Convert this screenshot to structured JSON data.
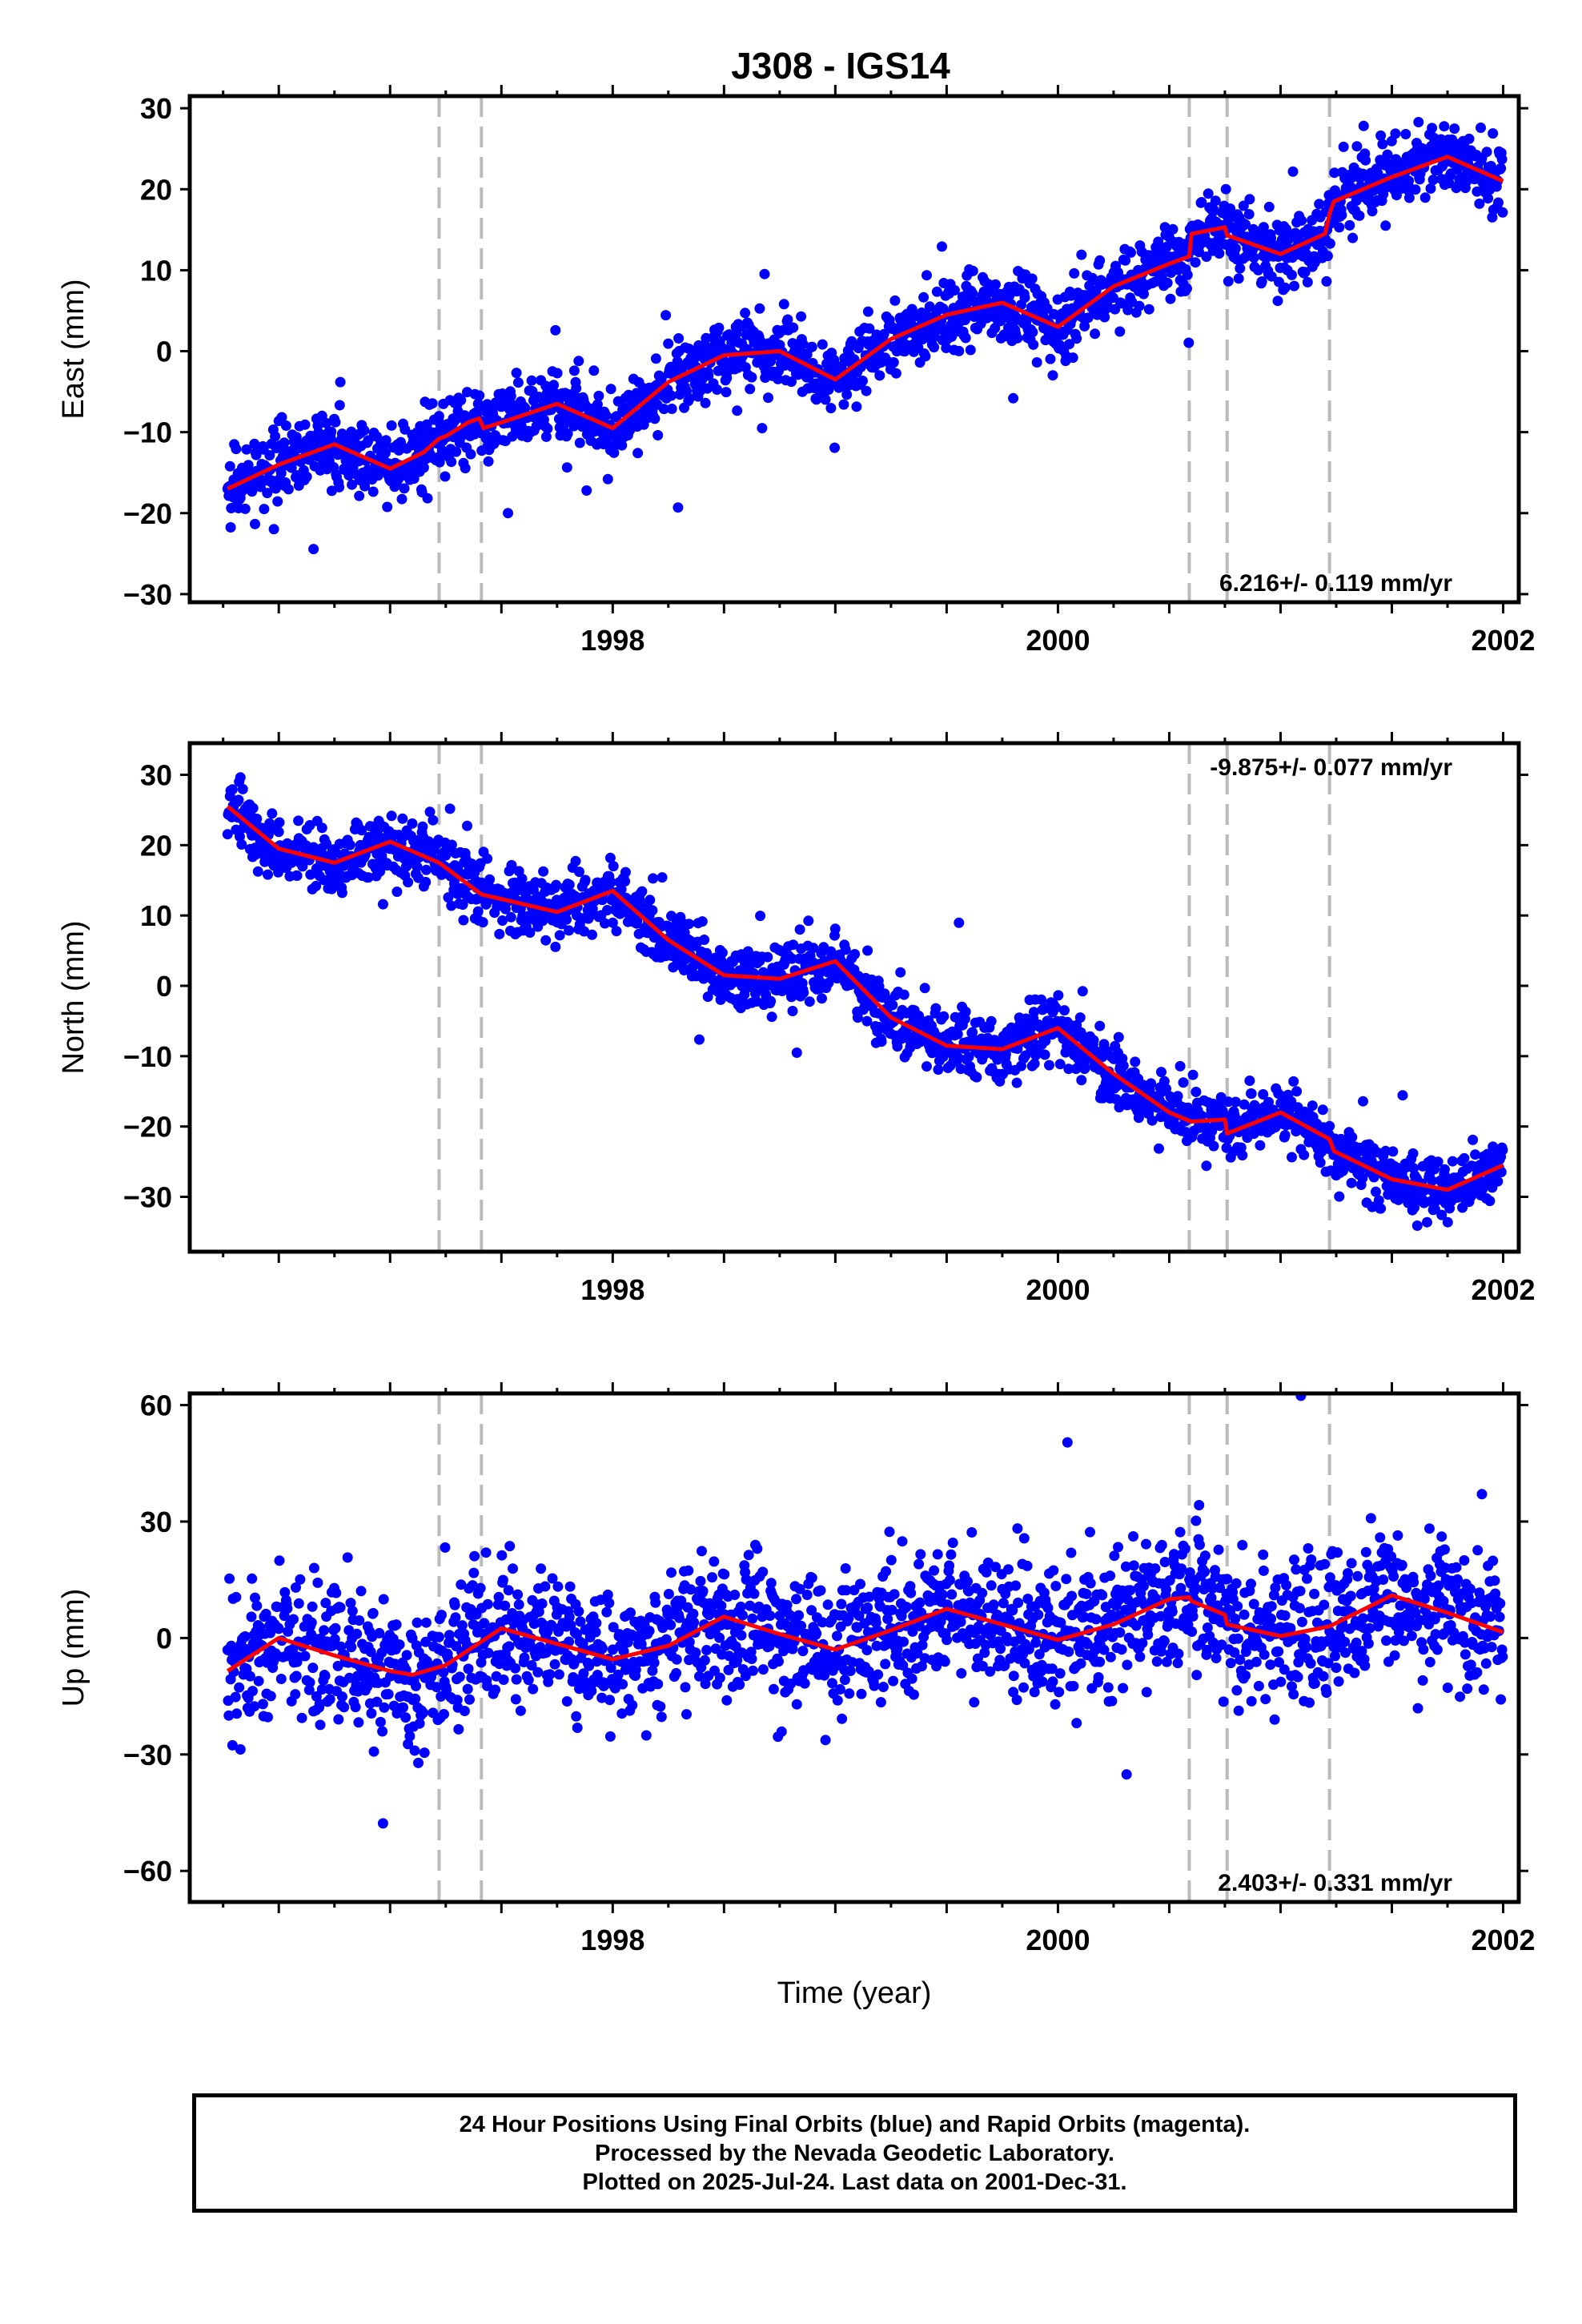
{
  "title": "J308 - IGS14",
  "colors": {
    "points": "#0000ff",
    "model": "#ff0000",
    "breaks": "#bbbbbb",
    "frame": "#000000"
  },
  "chart_data": [
    {
      "type": "scatter",
      "ylabel": "East (mm)",
      "xlabel": "",
      "xlim": [
        1996.1,
        2002.07
      ],
      "ylim": [
        -31,
        31.5
      ],
      "yticks": [
        -30,
        -20,
        -10,
        0,
        10,
        20,
        30
      ],
      "ytick_labels": [
        "−30",
        "−20",
        "−10",
        "0",
        "10",
        "20",
        "30"
      ],
      "xticks": [
        1998,
        2000,
        2002
      ],
      "xtick_labels": [
        "1998",
        "2000",
        "2002"
      ],
      "rate_text": "6.216+/- 0.119 mm/yr",
      "rate_position": "bottom-right",
      "model_line": {
        "x": [
          1996.27,
          1996.5,
          1996.75,
          1997.0,
          1997.15,
          1997.22,
          1997.25,
          1997.35,
          1997.4,
          1997.42,
          1997.5,
          1997.75,
          1998.0,
          1998.25,
          1998.5,
          1998.75,
          1999.0,
          1999.25,
          1999.5,
          1999.75,
          2000.0,
          2000.25,
          2000.5,
          2000.59,
          2000.6,
          2000.75,
          2000.76,
          2001.0,
          2001.2,
          2001.22,
          2001.24,
          2001.5,
          2001.75,
          2002.0
        ],
        "y": [
          -17,
          -14,
          -11.5,
          -14.5,
          -12.5,
          -10.8,
          -10.5,
          -8.8,
          -8.3,
          -9.5,
          -8.8,
          -6.5,
          -9.5,
          -3.8,
          -0.5,
          0,
          -3.5,
          1.5,
          4.5,
          6,
          3,
          8,
          10.8,
          11.7,
          14.5,
          15.3,
          14.3,
          12,
          14.5,
          17,
          18.5,
          21.5,
          24,
          21
        ]
      },
      "breaks": [
        1997.22,
        1997.41,
        2000.59,
        2000.76,
        2001.22
      ]
    },
    {
      "type": "scatter",
      "ylabel": "North (mm)",
      "xlabel": "",
      "xlim": [
        1996.1,
        2002.07
      ],
      "ylim": [
        -37.8,
        34.5
      ],
      "yticks": [
        -30,
        -20,
        -10,
        0,
        10,
        20,
        30
      ],
      "ytick_labels": [
        "−30",
        "−20",
        "−10",
        "0",
        "10",
        "20",
        "30"
      ],
      "xticks": [
        1998,
        2000,
        2002
      ],
      "xtick_labels": [
        "1998",
        "2000",
        "2002"
      ],
      "rate_text": "-9.875+/- 0.077 mm/yr",
      "rate_position": "top-right",
      "model_line": {
        "x": [
          1996.27,
          1996.5,
          1996.75,
          1997.0,
          1997.22,
          1997.41,
          1997.75,
          1998.0,
          1998.25,
          1998.5,
          1998.75,
          1999.0,
          1999.25,
          1999.5,
          1999.75,
          2000.0,
          2000.25,
          2000.5,
          2000.59,
          2000.6,
          2000.75,
          2000.76,
          2001.0,
          2001.22,
          2001.24,
          2001.5,
          2001.75,
          2002.0
        ],
        "y": [
          25.5,
          19.5,
          17.5,
          20.5,
          17.5,
          13,
          10.5,
          13.5,
          6.5,
          1.5,
          1,
          3.5,
          -4.5,
          -8.5,
          -9,
          -6,
          -12.5,
          -18,
          -19.2,
          -19.3,
          -19,
          -21,
          -18,
          -21.8,
          -23.5,
          -27.5,
          -29,
          -25.5
        ]
      },
      "breaks": [
        1997.22,
        1997.41,
        2000.59,
        2000.76,
        2001.22
      ]
    },
    {
      "type": "scatter",
      "ylabel": "Up (mm)",
      "xlabel": "Time (year)",
      "xlim": [
        1996.1,
        2002.07
      ],
      "ylim": [
        -68,
        63
      ],
      "yticks": [
        -60,
        -30,
        0,
        30,
        60
      ],
      "ytick_labels": [
        "−60",
        "−30",
        "0",
        "30",
        "60"
      ],
      "xticks": [
        1998,
        2000,
        2002
      ],
      "xtick_labels": [
        "1998",
        "2000",
        "2002"
      ],
      "rate_text": "2.403+/- 0.331 mm/yr",
      "rate_position": "bottom-right",
      "model_line": {
        "x": [
          1996.27,
          1996.5,
          1996.75,
          1997.0,
          1997.1,
          1997.25,
          1997.5,
          1997.75,
          1998.0,
          1998.25,
          1998.5,
          1998.75,
          1999.0,
          1999.25,
          1999.5,
          1999.75,
          2000.0,
          2000.25,
          2000.5,
          2000.59,
          2000.6,
          2000.75,
          2000.76,
          2001.0,
          2001.22,
          2001.5,
          2001.75,
          2002.0
        ],
        "y": [
          -8.5,
          0,
          -4.5,
          -8.5,
          -9.5,
          -7,
          2.5,
          -1.5,
          -5.5,
          -2,
          5.5,
          1,
          -3,
          2,
          7.5,
          3.5,
          -0.5,
          3.5,
          10,
          10.5,
          9.5,
          6,
          3.5,
          0.5,
          3,
          11,
          6.5,
          1.5
        ]
      },
      "breaks": [
        1997.22,
        1997.41,
        2000.59,
        2000.76,
        2001.22
      ]
    }
  ],
  "footer": {
    "line1": "24 Hour Positions Using Final Orbits (blue) and Rapid Orbits (magenta).",
    "line2": "Processed by the Nevada Geodetic Laboratory.",
    "line3": "Plotted on 2025-Jul-24. Last data on 2001-Dec-31."
  }
}
